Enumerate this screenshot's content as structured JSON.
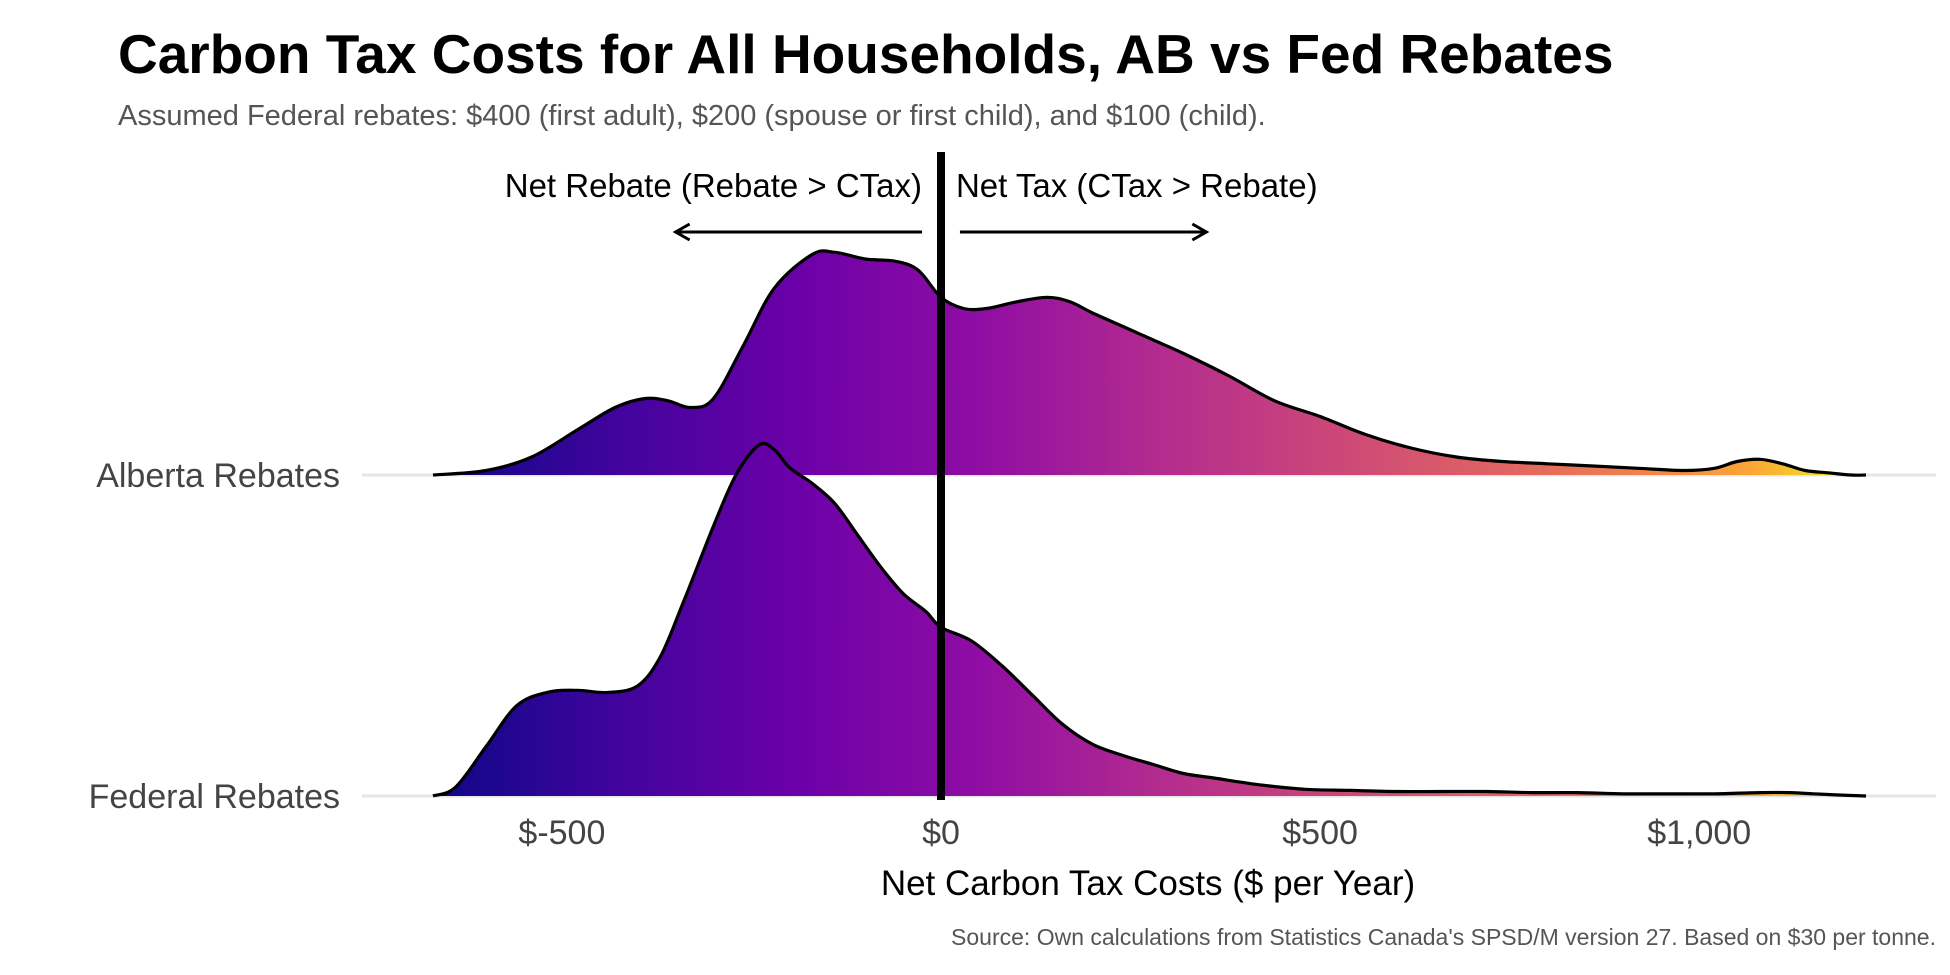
{
  "title": "Carbon Tax Costs for All Households, AB vs Fed Rebates",
  "subtitle": "Assumed Federal rebates: $400 (first adult), $200 (spouse or first child), and $100 (child).",
  "caption": "Source: Own calculations from Statistics Canada's SPSD/M version 27. Based on $30 per tonne.",
  "chart_data": {
    "type": "ridgeline-density",
    "xlabel": "Net Carbon Tax Costs ($ per Year)",
    "x_ticks": [
      {
        "value": -500,
        "label": "$-500"
      },
      {
        "value": 0,
        "label": "$0"
      },
      {
        "value": 500,
        "label": "$500"
      },
      {
        "value": 1000,
        "label": "$1,000"
      }
    ],
    "xlim": [
      -670,
      1220
    ],
    "reference_line": 0,
    "fill_scale": "plasma",
    "annotations": [
      {
        "text": "Net Rebate (Rebate > CTax)",
        "arrow_from": -25,
        "arrow_to": -350
      },
      {
        "text": "Net Tax (CTax > Rebate)",
        "arrow_from": 25,
        "arrow_to": 350
      }
    ],
    "series": [
      {
        "name": "Alberta Rebates",
        "x": [
          -670,
          -600,
          -540,
          -480,
          -430,
          -390,
          -360,
          -330,
          -300,
          -260,
          -220,
          -170,
          -140,
          -100,
          -60,
          -30,
          0,
          30,
          60,
          100,
          140,
          170,
          200,
          240,
          280,
          320,
          380,
          440,
          500,
          560,
          620,
          680,
          740,
          800,
          860,
          920,
          980,
          1020,
          1050,
          1080,
          1110,
          1140,
          1170,
          1200,
          1220
        ],
        "density": [
          0,
          0.02,
          0.08,
          0.2,
          0.3,
          0.34,
          0.33,
          0.3,
          0.34,
          0.58,
          0.83,
          0.98,
          0.99,
          0.96,
          0.95,
          0.91,
          0.79,
          0.74,
          0.74,
          0.77,
          0.79,
          0.77,
          0.72,
          0.66,
          0.6,
          0.54,
          0.44,
          0.33,
          0.26,
          0.18,
          0.12,
          0.08,
          0.06,
          0.05,
          0.04,
          0.03,
          0.02,
          0.03,
          0.06,
          0.07,
          0.05,
          0.02,
          0.01,
          0,
          0
        ]
      },
      {
        "name": "Federal Rebates",
        "x": [
          -670,
          -640,
          -600,
          -560,
          -520,
          -480,
          -440,
          -400,
          -370,
          -340,
          -300,
          -270,
          -240,
          -220,
          -200,
          -170,
          -140,
          -110,
          -80,
          -50,
          -20,
          0,
          40,
          80,
          120,
          160,
          200,
          240,
          280,
          320,
          360,
          420,
          480,
          540,
          600,
          660,
          720,
          780,
          840,
          900,
          960,
          1020,
          1080,
          1120,
          1150,
          1180,
          1220
        ],
        "density": [
          0,
          0.04,
          0.22,
          0.4,
          0.46,
          0.47,
          0.46,
          0.49,
          0.62,
          0.86,
          1.2,
          1.43,
          1.56,
          1.54,
          1.46,
          1.39,
          1.3,
          1.16,
          1.02,
          0.9,
          0.82,
          0.75,
          0.69,
          0.58,
          0.45,
          0.32,
          0.23,
          0.18,
          0.14,
          0.1,
          0.08,
          0.05,
          0.03,
          0.025,
          0.02,
          0.02,
          0.02,
          0.015,
          0.015,
          0.01,
          0.01,
          0.01,
          0.015,
          0.015,
          0.01,
          0.005,
          0
        ]
      }
    ]
  }
}
